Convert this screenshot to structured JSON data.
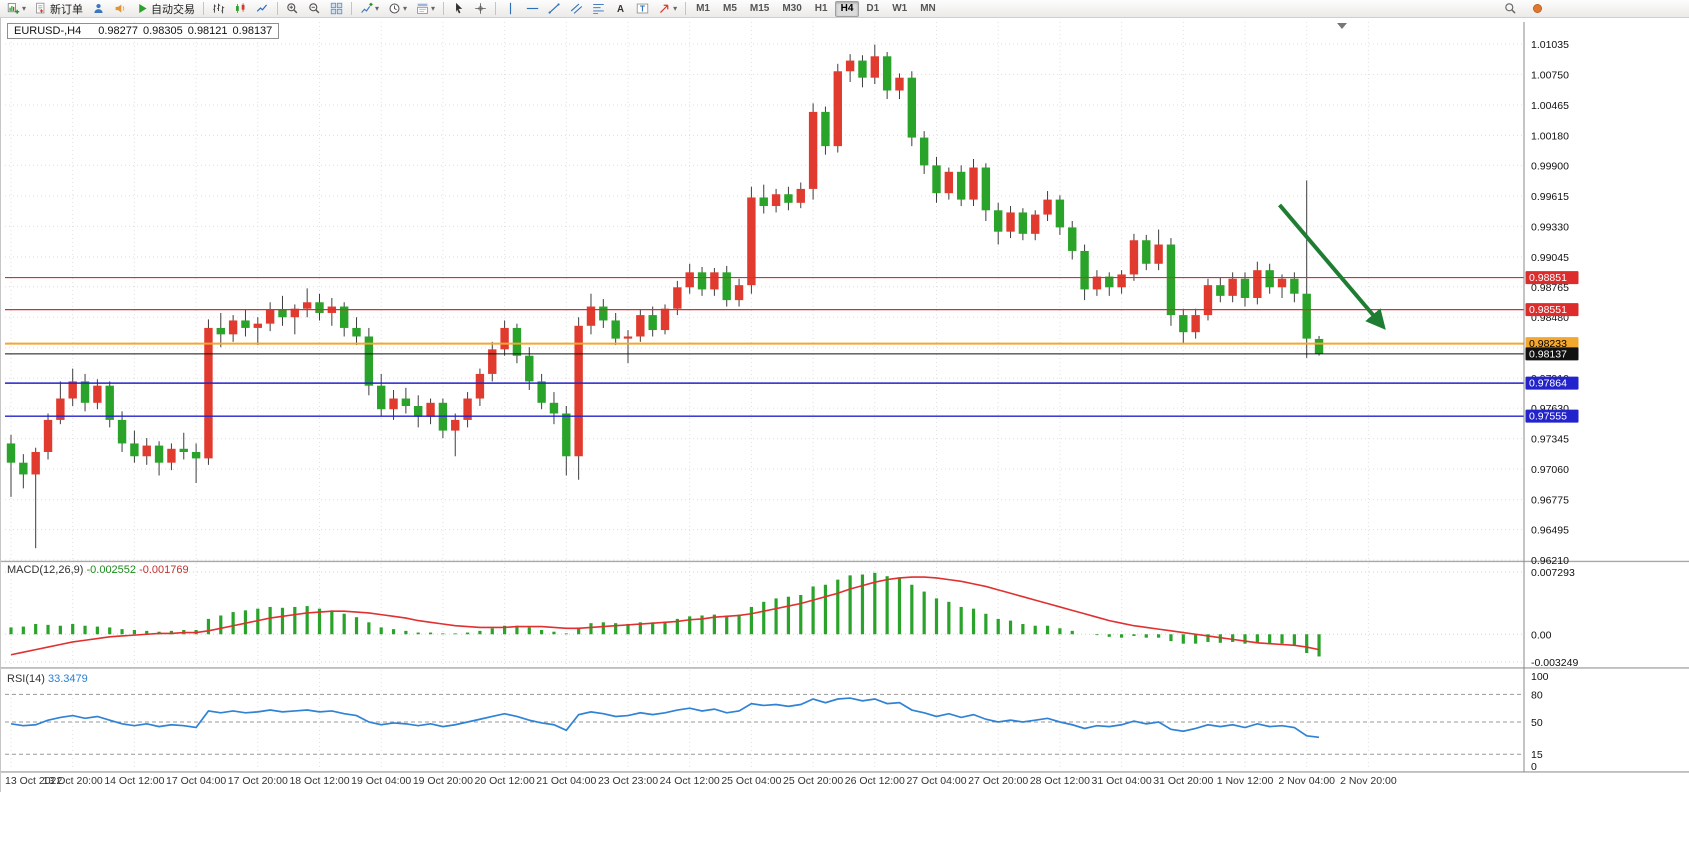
{
  "toolbar": {
    "new_order_label": "新订单",
    "autotrade_label": "自动交易",
    "timeframes": [
      "M1",
      "M5",
      "M15",
      "M30",
      "H1",
      "H4",
      "D1",
      "W1",
      "MN"
    ],
    "active_timeframe": "H4",
    "items": [
      {
        "name": "new-chart-button",
        "icon": "new-chart",
        "caret": true
      },
      {
        "name": "new-order-button",
        "icon": "new-order",
        "label": "新订单"
      },
      {
        "name": "profile-button",
        "icon": "profile"
      },
      {
        "name": "sound-alerts-button",
        "icon": "sound"
      },
      {
        "name": "autotrade-button",
        "icon": "play",
        "label": "自动交易"
      },
      {
        "type": "sep"
      },
      {
        "name": "bar-chart-button",
        "icon": "bars"
      },
      {
        "name": "candle-chart-button",
        "icon": "candles"
      },
      {
        "name": "line-chart-button",
        "icon": "linechart"
      },
      {
        "type": "sep"
      },
      {
        "name": "zoom-in-button",
        "icon": "zoom-in"
      },
      {
        "name": "zoom-out-button",
        "icon": "zoom-out"
      },
      {
        "name": "tile-windows-button",
        "icon": "tile"
      },
      {
        "type": "sep"
      },
      {
        "name": "indicators-button",
        "icon": "plus-chart",
        "caret": true
      },
      {
        "name": "periods-button",
        "icon": "clock",
        "caret": true
      },
      {
        "name": "templates-button",
        "icon": "template",
        "caret": true
      },
      {
        "type": "sep"
      },
      {
        "name": "cursor-button",
        "icon": "cursor"
      },
      {
        "name": "crosshair-button",
        "icon": "crosshair"
      },
      {
        "type": "sep"
      },
      {
        "name": "vertical-line-button",
        "icon": "vline"
      },
      {
        "name": "horizontal-line-button",
        "icon": "hline"
      },
      {
        "name": "trendline-button",
        "icon": "trendline"
      },
      {
        "name": "channel-button",
        "icon": "channel"
      },
      {
        "name": "fibonacci-button",
        "icon": "fibo"
      },
      {
        "name": "text-button",
        "icon": "text-a"
      },
      {
        "name": "text-label-button",
        "icon": "text-label"
      },
      {
        "name": "arrows-button",
        "icon": "arrows",
        "caret": true
      }
    ]
  },
  "labels": {
    "chart_title": "EURUSD-,H4",
    "ohlc_open": "0.98277",
    "ohlc_high": "0.98305",
    "ohlc_low": "0.98121",
    "ohlc_close": "0.98137",
    "macd_name": "MACD(12,26,9)",
    "macd_main": "-0.002552",
    "macd_signal": "-0.001769",
    "rsi_name": "RSI(14)",
    "rsi_value": "33.3479"
  },
  "chart_data": {
    "type": "candlestick",
    "symbol": "EURUSD-",
    "timeframe": "H4",
    "ylim": [
      0.9621,
      1.01035
    ],
    "price_scale_ticks": [
      "1.01035",
      "1.00750",
      "1.00465",
      "1.00180",
      "0.99900",
      "0.99615",
      "0.99330",
      "0.99045",
      "0.98765",
      "0.98480",
      "0.98195",
      "0.97910",
      "0.97630",
      "0.97345",
      "0.97060",
      "0.96775",
      "0.96495",
      "0.96210"
    ],
    "x_labels": [
      "13 Oct 2022",
      "13 Oct 20:00",
      "14 Oct 12:00",
      "17 Oct 04:00",
      "17 Oct 20:00",
      "18 Oct 12:00",
      "19 Oct 04:00",
      "19 Oct 20:00",
      "20 Oct 12:00",
      "21 Oct 04:00",
      "23 Oct 23:00",
      "24 Oct 12:00",
      "25 Oct 04:00",
      "25 Oct 20:00",
      "26 Oct 12:00",
      "27 Oct 04:00",
      "27 Oct 20:00",
      "28 Oct 12:00",
      "31 Oct 04:00",
      "31 Oct 20:00",
      "1 Nov 12:00",
      "2 Nov 04:00",
      "2 Nov 20:00"
    ],
    "label_every": 5,
    "candles_ohlc": [
      [
        0.973,
        0.9738,
        0.968,
        0.9712
      ],
      [
        0.9712,
        0.972,
        0.9688,
        0.9701
      ],
      [
        0.9701,
        0.9726,
        0.9632,
        0.9722
      ],
      [
        0.9722,
        0.9758,
        0.9715,
        0.9752
      ],
      [
        0.9752,
        0.9788,
        0.9748,
        0.9772
      ],
      [
        0.9772,
        0.98,
        0.9765,
        0.9788
      ],
      [
        0.9788,
        0.9795,
        0.976,
        0.9768
      ],
      [
        0.9768,
        0.979,
        0.9762,
        0.9784
      ],
      [
        0.9784,
        0.9788,
        0.9745,
        0.9752
      ],
      [
        0.9752,
        0.976,
        0.9722,
        0.973
      ],
      [
        0.973,
        0.9742,
        0.9712,
        0.9718
      ],
      [
        0.9718,
        0.9735,
        0.971,
        0.9728
      ],
      [
        0.9728,
        0.9732,
        0.97,
        0.9712
      ],
      [
        0.9712,
        0.973,
        0.9705,
        0.9725
      ],
      [
        0.9725,
        0.974,
        0.9715,
        0.9722
      ],
      [
        0.9722,
        0.973,
        0.9693,
        0.9716
      ],
      [
        0.9716,
        0.9846,
        0.971,
        0.9838
      ],
      [
        0.9838,
        0.9852,
        0.982,
        0.9832
      ],
      [
        0.9832,
        0.985,
        0.9825,
        0.9845
      ],
      [
        0.9845,
        0.9855,
        0.983,
        0.9838
      ],
      [
        0.9838,
        0.9848,
        0.9822,
        0.9842
      ],
      [
        0.9842,
        0.9862,
        0.9835,
        0.9855
      ],
      [
        0.9855,
        0.9868,
        0.984,
        0.9848
      ],
      [
        0.9848,
        0.986,
        0.9832,
        0.9856
      ],
      [
        0.9856,
        0.9875,
        0.9848,
        0.9862
      ],
      [
        0.9862,
        0.987,
        0.9845,
        0.9852
      ],
      [
        0.9852,
        0.9866,
        0.984,
        0.9858
      ],
      [
        0.9858,
        0.9862,
        0.983,
        0.9838
      ],
      [
        0.9838,
        0.9848,
        0.9822,
        0.983
      ],
      [
        0.983,
        0.9838,
        0.9775,
        0.9784
      ],
      [
        0.9784,
        0.9795,
        0.9755,
        0.9762
      ],
      [
        0.9762,
        0.978,
        0.9752,
        0.9772
      ],
      [
        0.9772,
        0.9782,
        0.9758,
        0.9765
      ],
      [
        0.9765,
        0.9775,
        0.9745,
        0.9755
      ],
      [
        0.9755,
        0.9772,
        0.9748,
        0.9768
      ],
      [
        0.9768,
        0.9772,
        0.9735,
        0.9742
      ],
      [
        0.9742,
        0.9758,
        0.9718,
        0.9752
      ],
      [
        0.9752,
        0.9778,
        0.9745,
        0.9772
      ],
      [
        0.9772,
        0.98,
        0.9765,
        0.9795
      ],
      [
        0.9795,
        0.9825,
        0.9788,
        0.9818
      ],
      [
        0.9818,
        0.9845,
        0.9812,
        0.9838
      ],
      [
        0.9838,
        0.9842,
        0.9805,
        0.9812
      ],
      [
        0.9812,
        0.982,
        0.978,
        0.9788
      ],
      [
        0.9788,
        0.9795,
        0.9762,
        0.9768
      ],
      [
        0.9768,
        0.9778,
        0.9748,
        0.9758
      ],
      [
        0.9758,
        0.9765,
        0.97,
        0.9718
      ],
      [
        0.9718,
        0.9848,
        0.9696,
        0.984
      ],
      [
        0.984,
        0.987,
        0.9832,
        0.9858
      ],
      [
        0.9858,
        0.9865,
        0.9838,
        0.9845
      ],
      [
        0.9845,
        0.9852,
        0.9822,
        0.9828
      ],
      [
        0.9828,
        0.9836,
        0.9805,
        0.983
      ],
      [
        0.983,
        0.9855,
        0.9825,
        0.985
      ],
      [
        0.985,
        0.9858,
        0.983,
        0.9836
      ],
      [
        0.9836,
        0.986,
        0.9832,
        0.9856
      ],
      [
        0.9856,
        0.9882,
        0.985,
        0.9876
      ],
      [
        0.9876,
        0.9898,
        0.987,
        0.989
      ],
      [
        0.989,
        0.9895,
        0.9868,
        0.9874
      ],
      [
        0.9874,
        0.9894,
        0.9868,
        0.989
      ],
      [
        0.989,
        0.9896,
        0.9858,
        0.9864
      ],
      [
        0.9864,
        0.9884,
        0.9858,
        0.9878
      ],
      [
        0.9878,
        0.997,
        0.987,
        0.996
      ],
      [
        0.996,
        0.9972,
        0.9945,
        0.9952
      ],
      [
        0.9952,
        0.9968,
        0.9946,
        0.9963
      ],
      [
        0.9963,
        0.997,
        0.9948,
        0.9955
      ],
      [
        0.9955,
        0.9974,
        0.995,
        0.9968
      ],
      [
        0.9968,
        1.0048,
        0.9958,
        1.004
      ],
      [
        1.004,
        1.0045,
        1.0,
        1.0008
      ],
      [
        1.0008,
        1.0085,
        1.0002,
        1.0078
      ],
      [
        1.0078,
        1.0094,
        1.0068,
        1.0088
      ],
      [
        1.0088,
        1.0093,
        1.0063,
        1.0072
      ],
      [
        1.0072,
        1.0103,
        1.0066,
        1.0092
      ],
      [
        1.0092,
        1.0096,
        1.0052,
        1.006
      ],
      [
        1.006,
        1.0076,
        1.0052,
        1.0072
      ],
      [
        1.0072,
        1.0078,
        1.0008,
        1.0016
      ],
      [
        1.0016,
        1.0022,
        0.9982,
        0.999
      ],
      [
        0.999,
        0.9998,
        0.9955,
        0.9964
      ],
      [
        0.9964,
        0.9988,
        0.9958,
        0.9984
      ],
      [
        0.9984,
        0.999,
        0.9952,
        0.9958
      ],
      [
        0.9958,
        0.9996,
        0.9952,
        0.9988
      ],
      [
        0.9988,
        0.9992,
        0.9938,
        0.9948
      ],
      [
        0.9948,
        0.9955,
        0.9916,
        0.9928
      ],
      [
        0.9928,
        0.9952,
        0.9922,
        0.9946
      ],
      [
        0.9946,
        0.995,
        0.992,
        0.9926
      ],
      [
        0.9926,
        0.9948,
        0.992,
        0.9944
      ],
      [
        0.9944,
        0.9966,
        0.9938,
        0.9958
      ],
      [
        0.9958,
        0.9962,
        0.9925,
        0.9932
      ],
      [
        0.9932,
        0.9938,
        0.9902,
        0.991
      ],
      [
        0.991,
        0.9916,
        0.9864,
        0.9874
      ],
      [
        0.9874,
        0.9892,
        0.9868,
        0.9886
      ],
      [
        0.9886,
        0.989,
        0.9868,
        0.9876
      ],
      [
        0.9876,
        0.9892,
        0.987,
        0.9888
      ],
      [
        0.9888,
        0.9926,
        0.9882,
        0.992
      ],
      [
        0.992,
        0.9925,
        0.9892,
        0.9898
      ],
      [
        0.9898,
        0.993,
        0.9892,
        0.9916
      ],
      [
        0.9916,
        0.9922,
        0.984,
        0.985
      ],
      [
        0.985,
        0.9856,
        0.9824,
        0.9834
      ],
      [
        0.9834,
        0.9856,
        0.9828,
        0.985
      ],
      [
        0.985,
        0.9884,
        0.9845,
        0.9878
      ],
      [
        0.9878,
        0.9885,
        0.9862,
        0.9868
      ],
      [
        0.9868,
        0.989,
        0.9862,
        0.9884
      ],
      [
        0.9884,
        0.989,
        0.9858,
        0.9866
      ],
      [
        0.9866,
        0.99,
        0.986,
        0.9892
      ],
      [
        0.9892,
        0.9898,
        0.987,
        0.9876
      ],
      [
        0.9876,
        0.9888,
        0.9866,
        0.9884
      ],
      [
        0.9884,
        0.989,
        0.9862,
        0.987
      ],
      [
        0.987,
        0.9976,
        0.981,
        0.9828
      ],
      [
        0.98277,
        0.98305,
        0.98121,
        0.98137
      ]
    ],
    "overlays": {
      "horizontal_lines": [
        {
          "label": "0.98851",
          "price": 0.98851,
          "color": "#dd2c2c",
          "width": 1.2
        },
        {
          "label": "0.98551",
          "price": 0.98551,
          "color": "#dd2c2c",
          "width": 1.2
        },
        {
          "label": "0.98233",
          "price": 0.98233,
          "color": "#f2a72e",
          "width": 2,
          "text_color": "#000000"
        },
        {
          "label": "0.98137",
          "price": 0.98137,
          "color": "#111111",
          "width": 1,
          "role": "current-price"
        },
        {
          "label": "0.97864",
          "price": 0.97864,
          "color": "#2323cc",
          "width": 1.4
        },
        {
          "label": "0.97555",
          "price": 0.97555,
          "color": "#2323cc",
          "width": 1.4
        }
      ],
      "trend_arrow": {
        "from_bar": 102.8,
        "from_price": 0.9953,
        "to_bar": 111.2,
        "to_price": 0.9839,
        "color": "#1e7d32"
      }
    },
    "indicators": [
      {
        "type": "macd",
        "name": "MACD",
        "params": "12,26,9",
        "scale_ticks": [
          "0.007293",
          "0.00",
          "-0.003249"
        ],
        "scale_tick_values": [
          0.007293,
          0,
          -0.003249
        ],
        "main": [
          0.0008,
          0.0009,
          0.0012,
          0.0011,
          0.001,
          0.0012,
          0.001,
          0.0009,
          0.0008,
          0.0006,
          0.0005,
          0.0004,
          0.0003,
          0.0004,
          0.0005,
          0.0005,
          0.0018,
          0.0022,
          0.0026,
          0.0028,
          0.003,
          0.0032,
          0.0031,
          0.0032,
          0.0033,
          0.003,
          0.0028,
          0.0024,
          0.002,
          0.0014,
          0.0008,
          0.0006,
          0.0004,
          0.0002,
          0.0002,
          0.0001,
          0.0001,
          0.0002,
          0.0004,
          0.0007,
          0.001,
          0.001,
          0.0008,
          0.0005,
          0.0003,
          0.0001,
          0.0008,
          0.0013,
          0.0014,
          0.0013,
          0.0012,
          0.0014,
          0.0014,
          0.0015,
          0.0018,
          0.0021,
          0.0022,
          0.0023,
          0.0022,
          0.0023,
          0.0032,
          0.0038,
          0.0042,
          0.0044,
          0.0046,
          0.0056,
          0.0058,
          0.0064,
          0.0069,
          0.007,
          0.0072,
          0.0068,
          0.0066,
          0.0058,
          0.005,
          0.0042,
          0.0038,
          0.0032,
          0.003,
          0.0024,
          0.0018,
          0.0016,
          0.0012,
          0.001,
          0.001,
          0.0007,
          0.0004,
          0.0,
          -0.0001,
          -0.0003,
          -0.0004,
          -0.0002,
          -0.0004,
          -0.0004,
          -0.0008,
          -0.0011,
          -0.0011,
          -0.0009,
          -0.001,
          -0.0009,
          -0.0011,
          -0.001,
          -0.0011,
          -0.0011,
          -0.0013,
          -0.0022,
          -0.0026
        ],
        "signal": [
          -0.0024,
          -0.0021,
          -0.0018,
          -0.0015,
          -0.0012,
          -0.0009,
          -0.0007,
          -0.0005,
          -0.0003,
          -0.0002,
          -0.0001,
          0.0,
          0.0001,
          0.0001,
          0.0002,
          0.0002,
          0.0004,
          0.0007,
          0.001,
          0.0013,
          0.0016,
          0.0019,
          0.0021,
          0.0023,
          0.0025,
          0.0026,
          0.0027,
          0.0027,
          0.0026,
          0.0025,
          0.0023,
          0.0021,
          0.0019,
          0.0016,
          0.0014,
          0.0012,
          0.001,
          0.0009,
          0.0008,
          0.0008,
          0.0008,
          0.0009,
          0.0009,
          0.0009,
          0.0008,
          0.0007,
          0.0007,
          0.0008,
          0.0009,
          0.001,
          0.0011,
          0.0012,
          0.0013,
          0.0014,
          0.0015,
          0.0017,
          0.0018,
          0.002,
          0.0021,
          0.0022,
          0.0024,
          0.0027,
          0.003,
          0.0033,
          0.0036,
          0.004,
          0.0044,
          0.0048,
          0.0053,
          0.0057,
          0.0061,
          0.0064,
          0.0066,
          0.0067,
          0.0067,
          0.0066,
          0.0064,
          0.0062,
          0.0059,
          0.0056,
          0.0052,
          0.0048,
          0.0044,
          0.004,
          0.0036,
          0.0032,
          0.0028,
          0.0024,
          0.002,
          0.0016,
          0.0013,
          0.001,
          0.0008,
          0.0006,
          0.0004,
          0.0002,
          0.0,
          -0.0002,
          -0.0004,
          -0.0006,
          -0.0008,
          -0.001,
          -0.0011,
          -0.0012,
          -0.0013,
          -0.0015,
          -0.0018
        ]
      },
      {
        "type": "rsi",
        "name": "RSI",
        "params": "14",
        "scale_ticks": [
          "100",
          "80",
          "50",
          "15",
          "0"
        ],
        "scale_tick_values": [
          100,
          80,
          50,
          15,
          0
        ],
        "levels": [
          80,
          50,
          15
        ],
        "values": [
          48,
          46,
          47,
          52,
          55,
          57,
          54,
          56,
          52,
          48,
          46,
          48,
          45,
          47,
          46,
          44,
          62,
          60,
          62,
          60,
          61,
          63,
          61,
          62,
          63,
          61,
          62,
          59,
          57,
          50,
          47,
          49,
          48,
          46,
          48,
          45,
          47,
          50,
          53,
          56,
          59,
          56,
          52,
          49,
          47,
          41,
          58,
          61,
          59,
          56,
          57,
          60,
          58,
          60,
          63,
          65,
          62,
          64,
          60,
          62,
          70,
          68,
          69,
          67,
          69,
          75,
          71,
          75,
          76,
          73,
          75,
          70,
          71,
          63,
          60,
          56,
          59,
          55,
          58,
          53,
          50,
          52,
          50,
          52,
          54,
          50,
          47,
          43,
          46,
          45,
          47,
          51,
          48,
          50,
          42,
          40,
          43,
          47,
          45,
          47,
          44,
          48,
          45,
          46,
          44,
          35,
          33.35
        ]
      }
    ],
    "colors": {
      "up_candle": "#e13b30",
      "down_candle": "#2aa32a",
      "wick": "#3d3d3d",
      "macd_histogram": "#2aa32a",
      "macd_signal": "#e03030",
      "rsi_line": "#2f82d5",
      "grid": "#e0e0e0",
      "arrow": "#1e7d32"
    }
  }
}
